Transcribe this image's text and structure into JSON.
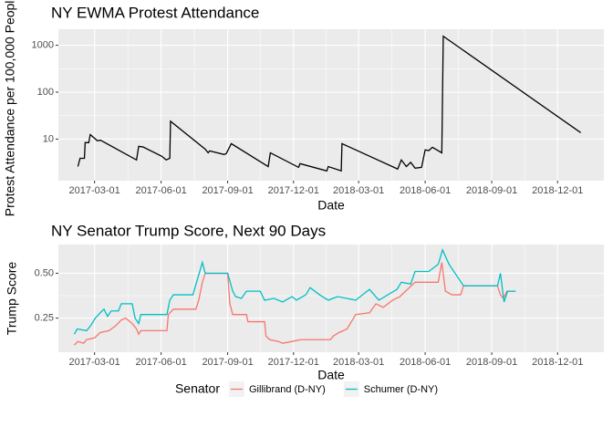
{
  "chart_data": [
    {
      "type": "line",
      "title": "NY EWMA Protest Attendance",
      "x_label": "Date",
      "y_label": "Protest Attendance per 100,000 People",
      "color": "#000000",
      "log_y": true,
      "grid": true,
      "xlim": [
        "2017-01-10",
        "2019-02-03"
      ],
      "xticks": [
        "2017-03-01",
        "2017-06-01",
        "2017-09-01",
        "2017-12-01",
        "2018-03-01",
        "2018-06-01",
        "2018-09-01",
        "2018-12-01"
      ],
      "ylim": [
        1.3,
        2200
      ],
      "yticks": [
        10,
        100,
        1000
      ],
      "x": [
        "2017-02-06",
        "2017-02-09",
        "2017-02-15",
        "2017-02-16",
        "2017-02-21",
        "2017-02-23",
        "2017-03-05",
        "2017-03-09",
        "2017-04-28",
        "2017-05-01",
        "2017-05-07",
        "2017-06-02",
        "2017-06-08",
        "2017-06-13",
        "2017-06-14",
        "2017-08-01",
        "2017-08-05",
        "2017-08-07",
        "2017-08-27",
        "2017-08-30",
        "2017-09-06",
        "2017-10-27",
        "2017-10-30",
        "2017-12-08",
        "2017-12-10",
        "2018-01-16",
        "2018-01-18",
        "2018-02-05",
        "2018-02-06",
        "2018-04-24",
        "2018-04-29",
        "2018-05-06",
        "2018-05-12",
        "2018-05-18",
        "2018-05-27",
        "2018-06-01",
        "2018-06-06",
        "2018-06-11",
        "2018-06-24",
        "2018-06-26",
        "2019-01-02"
      ],
      "values": [
        2.6,
        3.9,
        3.9,
        8.4,
        8.4,
        12.5,
        9.2,
        9.5,
        3.6,
        7.0,
        6.8,
        4.3,
        3.6,
        3.9,
        24,
        6.1,
        5.1,
        5.6,
        4.7,
        4.9,
        8.0,
        2.6,
        5.1,
        2.5,
        3.0,
        2.1,
        2.6,
        2.1,
        8.0,
        2.3,
        3.6,
        2.6,
        3.2,
        2.4,
        2.5,
        5.9,
        5.7,
        6.7,
        5.1,
        1560,
        13.7
      ]
    },
    {
      "type": "line",
      "title": "NY Senator Trump Score, Next 90 Days",
      "x_label": "Date",
      "y_label": "Trump Score",
      "grid": true,
      "legend_title": "Senator",
      "legend_position": "bottom",
      "xlim": [
        "2017-01-10",
        "2019-02-03"
      ],
      "xticks": [
        "2017-03-01",
        "2017-06-01",
        "2017-09-01",
        "2017-12-01",
        "2018-03-01",
        "2018-06-01",
        "2018-09-01",
        "2018-12-01"
      ],
      "ylim": [
        0.06,
        0.66
      ],
      "yticks": [
        0.25,
        {
          "value": 0.5,
          "label": "0.50"
        }
      ],
      "series": [
        {
          "name": "Gillibrand (D-NY)",
          "color": "#F8766D",
          "x": [
            "2017-02-01",
            "2017-02-06",
            "2017-02-14",
            "2017-02-18",
            "2017-03-01",
            "2017-03-09",
            "2017-03-21",
            "2017-03-31",
            "2017-04-07",
            "2017-04-13",
            "2017-04-22",
            "2017-04-28",
            "2017-05-01",
            "2017-05-04",
            "2017-06-09",
            "2017-06-11",
            "2017-06-18",
            "2017-07-19",
            "2017-07-23",
            "2017-07-28",
            "2017-08-01",
            "2017-09-01",
            "2017-09-04",
            "2017-09-08",
            "2017-09-27",
            "2017-09-29",
            "2017-10-22",
            "2017-10-24",
            "2017-10-29",
            "2017-11-10",
            "2017-11-16",
            "2017-11-29",
            "2017-12-11",
            "2018-01-21",
            "2018-01-25",
            "2018-02-02",
            "2018-02-13",
            "2018-02-25",
            "2018-03-16",
            "2018-03-25",
            "2018-04-04",
            "2018-04-17",
            "2018-04-27",
            "2018-05-18",
            "2018-06-19",
            "2018-06-24",
            "2018-06-29",
            "2018-07-08",
            "2018-07-20",
            "2018-07-24",
            "2018-09-09",
            "2018-09-13",
            "2018-09-17",
            "2018-09-22",
            "2018-10-04"
          ],
          "values": [
            0.1,
            0.12,
            0.11,
            0.13,
            0.14,
            0.17,
            0.18,
            0.21,
            0.24,
            0.25,
            0.22,
            0.19,
            0.16,
            0.18,
            0.18,
            0.27,
            0.3,
            0.3,
            0.35,
            0.45,
            0.5,
            0.5,
            0.33,
            0.27,
            0.27,
            0.23,
            0.23,
            0.15,
            0.13,
            0.12,
            0.11,
            0.12,
            0.13,
            0.13,
            0.15,
            0.17,
            0.19,
            0.27,
            0.28,
            0.33,
            0.31,
            0.35,
            0.37,
            0.45,
            0.45,
            0.56,
            0.4,
            0.38,
            0.38,
            0.43,
            0.43,
            0.38,
            0.36,
            0.4,
            0.4
          ]
        },
        {
          "name": "Schumer (D-NY)",
          "color": "#00BFC4",
          "x": [
            "2017-02-01",
            "2017-02-05",
            "2017-02-18",
            "2017-02-24",
            "2017-03-02",
            "2017-03-09",
            "2017-03-14",
            "2017-03-19",
            "2017-03-24",
            "2017-04-03",
            "2017-04-07",
            "2017-04-22",
            "2017-04-26",
            "2017-05-01",
            "2017-05-04",
            "2017-06-09",
            "2017-06-13",
            "2017-06-18",
            "2017-07-15",
            "2017-07-20",
            "2017-07-28",
            "2017-08-01",
            "2017-09-01",
            "2017-09-08",
            "2017-09-12",
            "2017-09-20",
            "2017-09-27",
            "2017-10-16",
            "2017-10-22",
            "2017-11-04",
            "2017-11-16",
            "2017-11-29",
            "2017-12-05",
            "2017-12-18",
            "2017-12-24",
            "2018-01-06",
            "2018-01-18",
            "2018-01-31",
            "2018-02-25",
            "2018-03-16",
            "2018-03-29",
            "2018-04-23",
            "2018-04-29",
            "2018-05-12",
            "2018-05-18",
            "2018-06-06",
            "2018-06-19",
            "2018-06-25",
            "2018-07-04",
            "2018-07-14",
            "2018-07-24",
            "2018-09-09",
            "2018-09-13",
            "2018-09-18",
            "2018-09-23",
            "2018-10-04"
          ],
          "values": [
            0.16,
            0.19,
            0.18,
            0.21,
            0.25,
            0.28,
            0.3,
            0.26,
            0.29,
            0.29,
            0.33,
            0.33,
            0.25,
            0.22,
            0.27,
            0.27,
            0.35,
            0.38,
            0.38,
            0.45,
            0.56,
            0.5,
            0.5,
            0.4,
            0.37,
            0.36,
            0.4,
            0.4,
            0.35,
            0.36,
            0.34,
            0.37,
            0.35,
            0.38,
            0.42,
            0.38,
            0.35,
            0.37,
            0.35,
            0.41,
            0.35,
            0.41,
            0.45,
            0.44,
            0.51,
            0.51,
            0.55,
            0.63,
            0.55,
            0.49,
            0.43,
            0.43,
            0.5,
            0.34,
            0.4,
            0.4
          ]
        }
      ]
    }
  ]
}
